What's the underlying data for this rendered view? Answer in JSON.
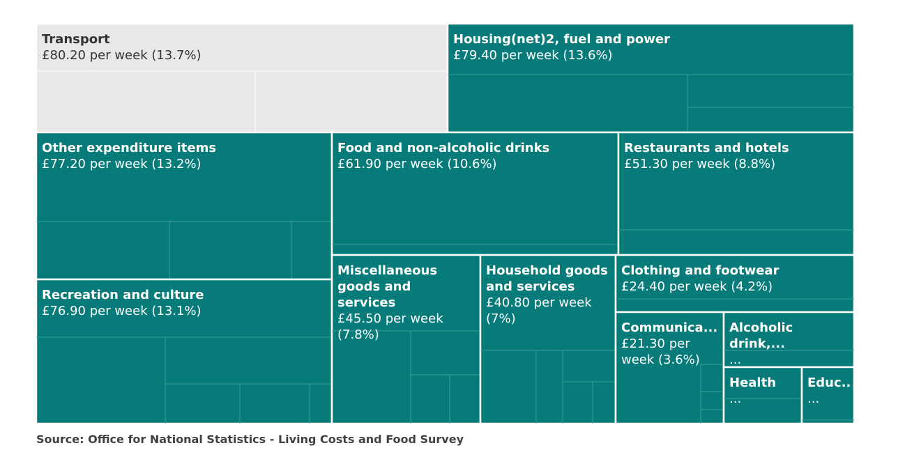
{
  "chart_data": {
    "type": "treemap",
    "colors": {
      "teal": "#077b79",
      "highlight": "#e8e8e8",
      "border": "#ffffff",
      "subline": "#3c9d9a"
    },
    "categories": [
      {
        "name": "Transport",
        "value": "£80.20 per week (13.7%)",
        "amount": 80.2,
        "percent": 13.7,
        "highlighted": true
      },
      {
        "name": "Housing(net)2, fuel and power",
        "value": "£79.40 per week (13.6%)",
        "amount": 79.4,
        "percent": 13.6
      },
      {
        "name": "Other expenditure items",
        "value": "£77.20 per week (13.2%)",
        "amount": 77.2,
        "percent": 13.2
      },
      {
        "name": "Food and non-alcoholic drinks",
        "value": "£61.90 per week (10.6%)",
        "amount": 61.9,
        "percent": 10.6
      },
      {
        "name": "Restaurants and hotels",
        "value": "£51.30 per week (8.8%)",
        "amount": 51.3,
        "percent": 8.8
      },
      {
        "name": "Recreation and culture",
        "value": "£76.90 per week (13.1%)",
        "amount": 76.9,
        "percent": 13.1
      },
      {
        "name": "Miscellaneous goods and services",
        "value": "£45.50 per week (7.8%)",
        "amount": 45.5,
        "percent": 7.8
      },
      {
        "name": "Household goods and services",
        "value": "£40.80 per week (7%)",
        "amount": 40.8,
        "percent": 7.0
      },
      {
        "name": "Clothing and footwear",
        "value": "£24.40 per week (4.2%)",
        "amount": 24.4,
        "percent": 4.2
      },
      {
        "name": "Communica...",
        "value": "£21.30 per week (3.6%)",
        "amount": 21.3,
        "percent": 3.6
      },
      {
        "name": "Alcoholic drink,...",
        "value": "...",
        "amount": null,
        "percent": null
      },
      {
        "name": "Health",
        "value": "...",
        "amount": null,
        "percent": null
      },
      {
        "name": "Educ...",
        "value": "...",
        "amount": null,
        "percent": null
      }
    ]
  },
  "source": "Source: Office for National Statistics - Living Costs and Food Survey"
}
